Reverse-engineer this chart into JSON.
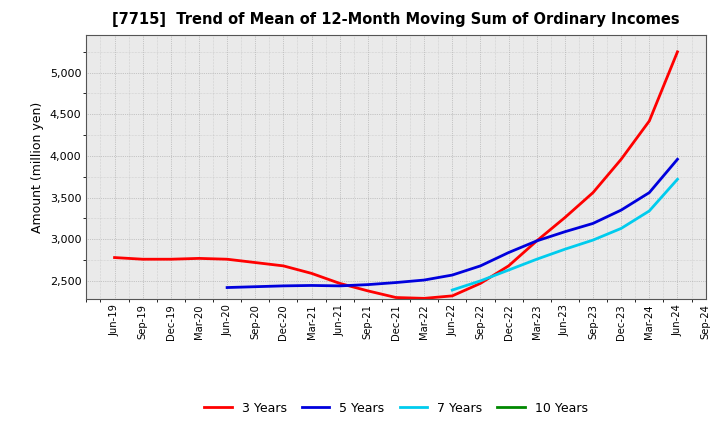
{
  "title": "[7715]  Trend of Mean of 12-Month Moving Sum of Ordinary Incomes",
  "ylabel": "Amount (million yen)",
  "background_color": "#ffffff",
  "plot_bg_color": "#eaeaea",
  "grid_color": "#999999",
  "ylim": [
    2280,
    5450
  ],
  "yticks": [
    2500,
    3000,
    3500,
    4000,
    4500,
    5000
  ],
  "x_labels": [
    "Jun-19",
    "Sep-19",
    "Dec-19",
    "Mar-20",
    "Jun-20",
    "Sep-20",
    "Dec-20",
    "Mar-21",
    "Jun-21",
    "Sep-21",
    "Dec-21",
    "Mar-22",
    "Jun-22",
    "Sep-22",
    "Dec-22",
    "Mar-23",
    "Jun-23",
    "Sep-23",
    "Dec-23",
    "Mar-24",
    "Jun-24",
    "Sep-24"
  ],
  "series": {
    "3 Years": {
      "color": "#ff0000",
      "data": [
        2780,
        2760,
        2760,
        2770,
        2760,
        2720,
        2680,
        2590,
        2470,
        2380,
        2300,
        2290,
        2320,
        2470,
        2680,
        2980,
        3260,
        3560,
        3960,
        4420,
        5250,
        null
      ]
    },
    "5 Years": {
      "color": "#0000dd",
      "data": [
        null,
        null,
        null,
        null,
        2420,
        2430,
        2440,
        2445,
        2440,
        2455,
        2480,
        2510,
        2570,
        2680,
        2840,
        2980,
        3090,
        3190,
        3350,
        3560,
        3960,
        null
      ]
    },
    "7 Years": {
      "color": "#00ccee",
      "data": [
        null,
        null,
        null,
        null,
        null,
        null,
        null,
        null,
        null,
        null,
        null,
        null,
        2390,
        2500,
        2630,
        2760,
        2880,
        2990,
        3130,
        3340,
        3720,
        null
      ]
    },
    "10 Years": {
      "color": "#008800",
      "data": [
        null,
        null,
        null,
        null,
        null,
        null,
        null,
        null,
        null,
        null,
        null,
        null,
        null,
        null,
        null,
        null,
        null,
        null,
        null,
        null,
        null,
        null
      ]
    }
  },
  "legend_labels": [
    "3 Years",
    "5 Years",
    "7 Years",
    "10 Years"
  ],
  "legend_colors": [
    "#ff0000",
    "#0000dd",
    "#00ccee",
    "#008800"
  ]
}
